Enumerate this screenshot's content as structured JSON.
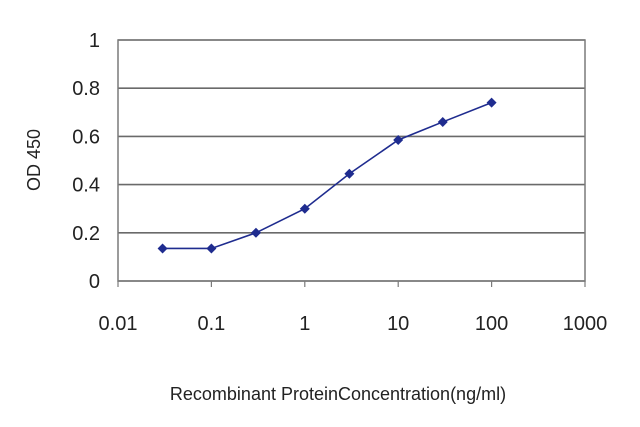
{
  "chart_data": {
    "type": "line",
    "title": "",
    "xlabel": "Recombinant ProteinConcentration(ng/ml)",
    "ylabel": "OD 450",
    "x_scale": "log",
    "xlim": [
      0.01,
      1000
    ],
    "ylim": [
      0,
      1
    ],
    "x_ticks": [
      "0.01",
      "0.1",
      "1",
      "10",
      "100",
      "1000"
    ],
    "y_ticks": [
      "0",
      "0.2",
      "0.4",
      "0.6",
      "0.8",
      "1"
    ],
    "grid": "horizontal",
    "legend": "none",
    "series": [
      {
        "color": "#1f2c8f",
        "marker": "diamond",
        "x": [
          0.03,
          0.1,
          0.3,
          1,
          3,
          10,
          30,
          100
        ],
        "y": [
          0.135,
          0.135,
          0.2,
          0.3,
          0.445,
          0.585,
          0.66,
          0.74
        ]
      }
    ]
  }
}
